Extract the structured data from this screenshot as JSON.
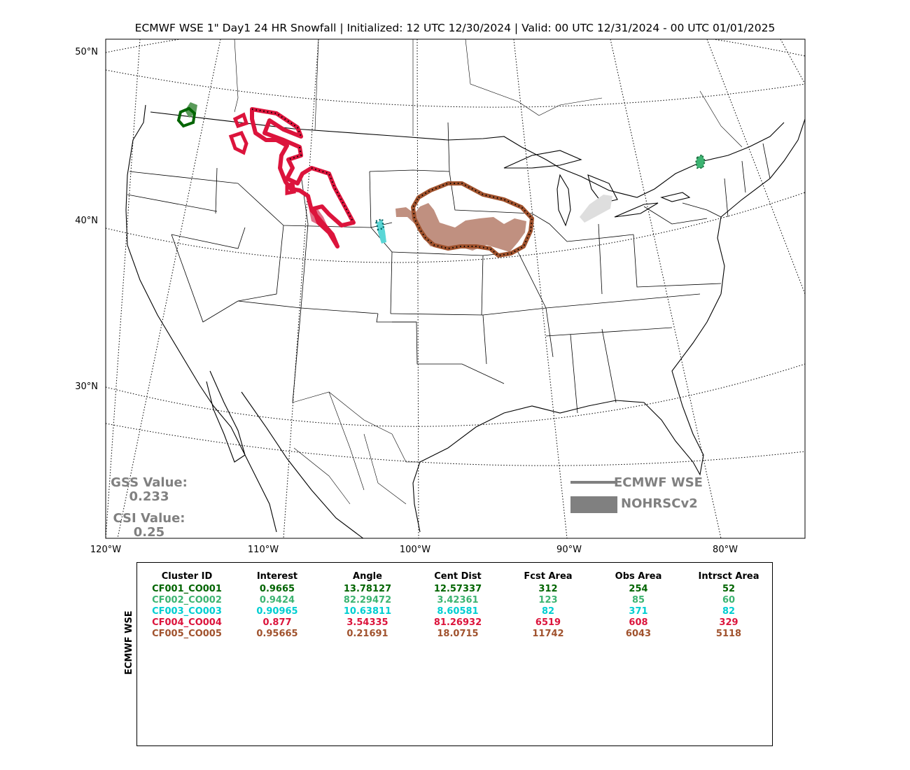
{
  "title": "ECMWF WSE 1\" Day1 24 HR Snowfall | Initialized: 12 UTC 12/30/2024 | Valid: 00 UTC 12/31/2024 - 00 UTC 01/01/2025",
  "map": {
    "lat_labels": [
      "50°N",
      "40°N",
      "30°N"
    ],
    "lon_labels": [
      "120°W",
      "110°W",
      "100°W",
      "90°W",
      "80°W"
    ]
  },
  "scores": {
    "gss_label": "GSS Value:",
    "gss_value": "0.233",
    "csi_label": "CSI Value:",
    "csi_value": "0.25"
  },
  "legend": {
    "forecast_label": "ECMWF WSE",
    "observed_label": "NOHRSCv2",
    "color": "#808080"
  },
  "table": {
    "ylabel": "ECMWF WSE",
    "headers": [
      "Cluster ID",
      "Interest",
      "Angle",
      "Cent Dist",
      "Fcst Area",
      "Obs Area",
      "Intrsct Area"
    ],
    "rows": [
      {
        "color": "#006400",
        "cells": [
          "CF001_CO001",
          "0.9665",
          "13.78127",
          "12.57337",
          "312",
          "254",
          "52"
        ]
      },
      {
        "color": "#3cb371",
        "cells": [
          "CF002_CO002",
          "0.9424",
          "82.29472",
          "3.42361",
          "123",
          "85",
          "60"
        ]
      },
      {
        "color": "#00ced1",
        "cells": [
          "CF003_CO003",
          "0.90965",
          "10.63811",
          "8.60581",
          "82",
          "371",
          "82"
        ]
      },
      {
        "color": "#dc143c",
        "cells": [
          "CF004_CO004",
          "0.877",
          "3.54335",
          "81.26932",
          "6519",
          "608",
          "329"
        ]
      },
      {
        "color": "#a0522d",
        "cells": [
          "CF005_CO005",
          "0.95665",
          "0.21691",
          "18.0715",
          "11742",
          "6043",
          "5118"
        ]
      }
    ]
  },
  "clusters": {
    "cf001": {
      "fcst": "#006400",
      "obs": "#5a9a5a"
    },
    "cf002": {
      "fcst": "#1e6b3e",
      "obs": "#3cb371"
    },
    "cf003": {
      "fcst": "#006464",
      "obs": "#5ad6d6"
    },
    "cf004": {
      "fcst": "#dc143c",
      "obs": "#e0708a"
    },
    "cf005": {
      "fcst": "#a0522d",
      "obs": "#c09080"
    },
    "unmatched_obs": "#dedede"
  }
}
